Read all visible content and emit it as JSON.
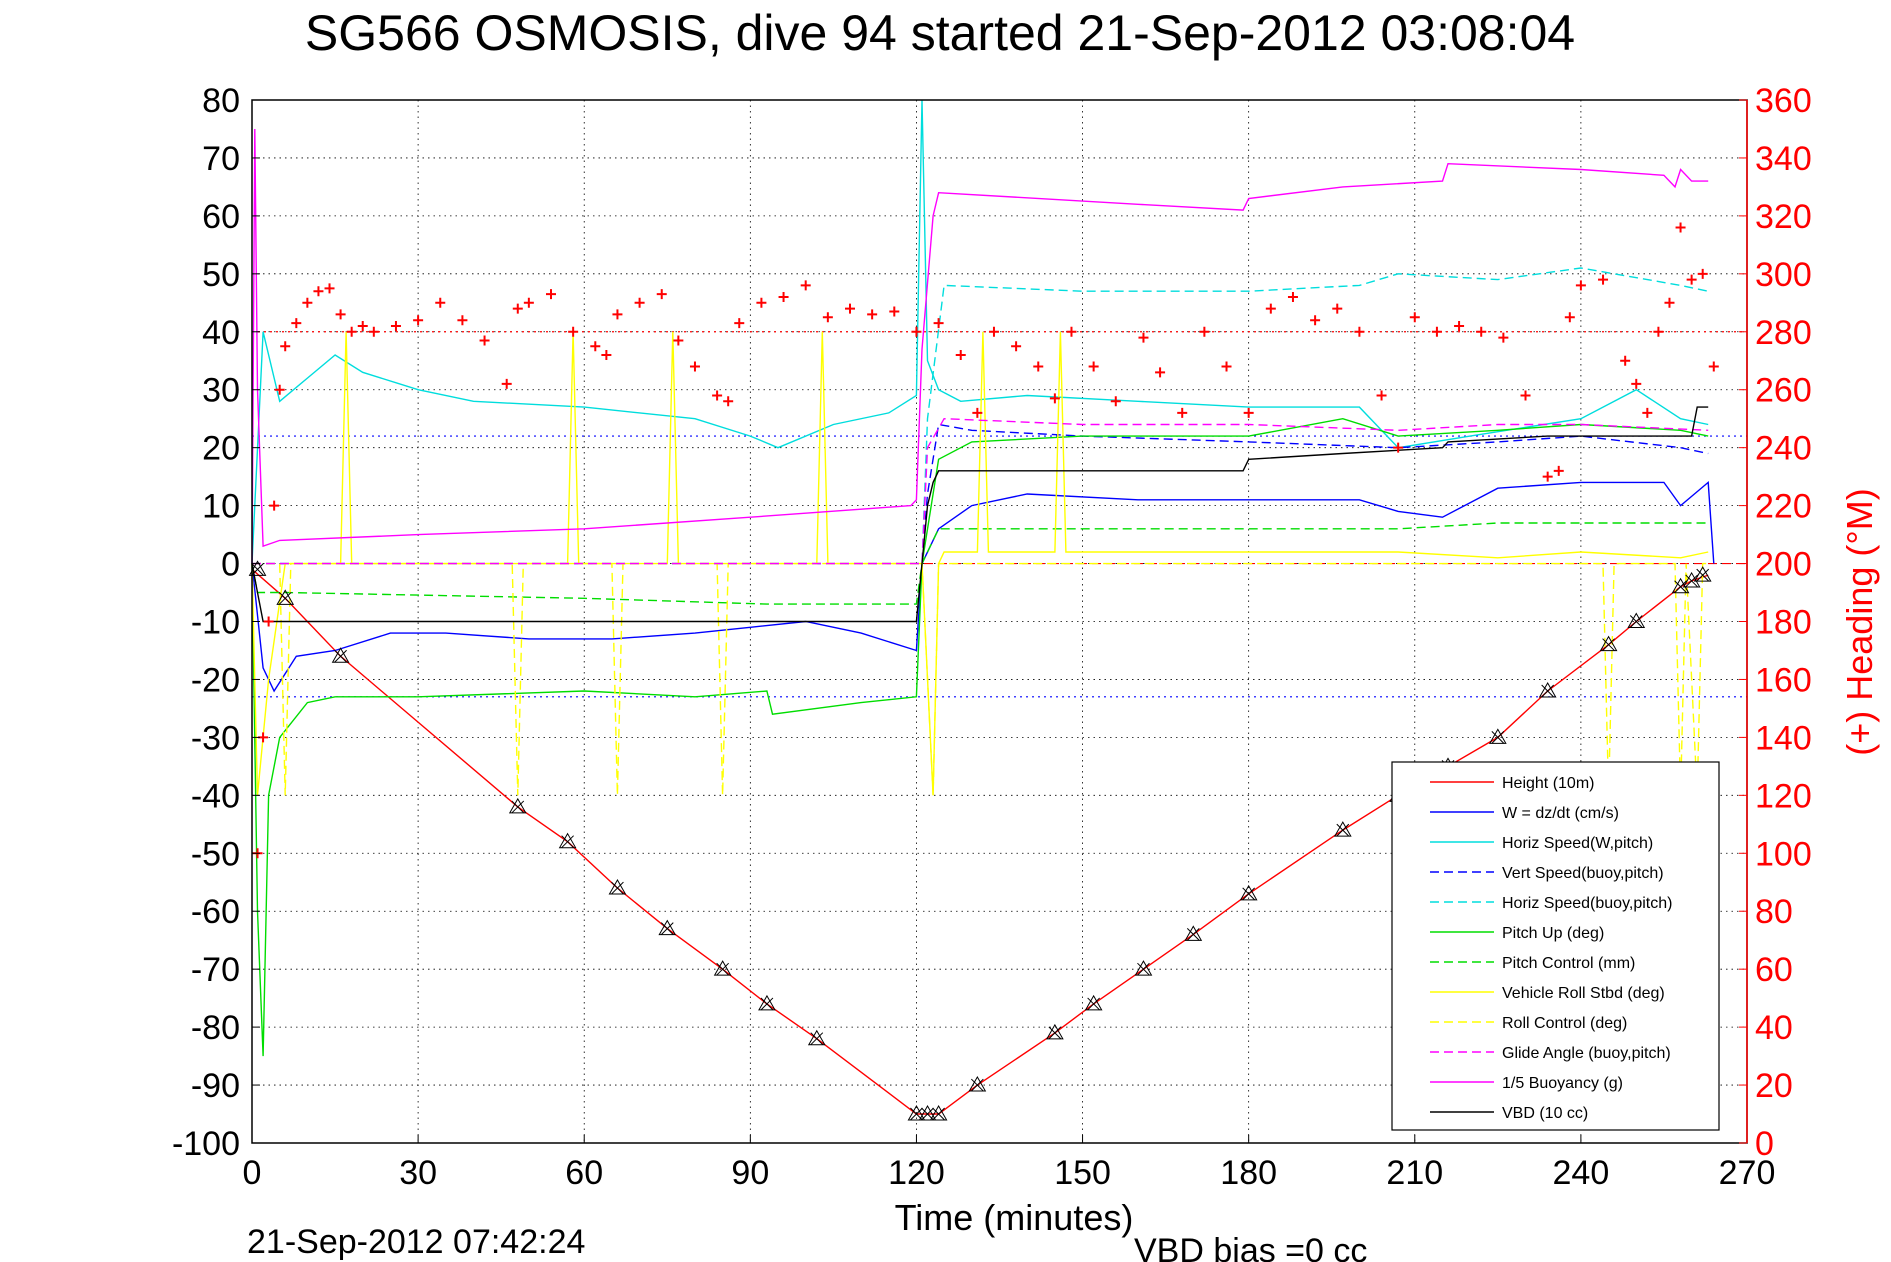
{
  "chart_data": {
    "type": "line",
    "title": "SG566 OSMOSIS, dive 94 started 21-Sep-2012 03:08:04",
    "xlabel": "Time (minutes)",
    "ylabel": "",
    "y2label": "(+) Heading (°M)",
    "xlim": [
      0,
      270
    ],
    "ylim": [
      -100,
      80
    ],
    "y2lim": [
      0,
      360
    ],
    "xticks": [
      0,
      30,
      60,
      90,
      120,
      150,
      180,
      210,
      240,
      270
    ],
    "yticks": [
      80,
      70,
      60,
      50,
      40,
      30,
      20,
      10,
      0,
      -10,
      -20,
      -30,
      -40,
      -50,
      -60,
      -70,
      -80,
      -90,
      -100
    ],
    "y2ticks": [
      360,
      340,
      320,
      300,
      280,
      260,
      240,
      220,
      200,
      180,
      160,
      140,
      120,
      100,
      80,
      60,
      40,
      20,
      0
    ],
    "grid": true,
    "legend_position": "bottom-right",
    "footer_left": "21-Sep-2012 07:42:24",
    "footer_right": "VBD bias =0 cc",
    "series": [
      {
        "name": "Height (10m)",
        "color": "#ff0000",
        "dash": "solid",
        "x": [
          0,
          6,
          16,
          48,
          57,
          66,
          75,
          85,
          93,
          102,
          120,
          122,
          124,
          131,
          145,
          152,
          161,
          170,
          180,
          197,
          207,
          216,
          225,
          234,
          245,
          250,
          258,
          260,
          263
        ],
        "values": [
          -1,
          -6,
          -16,
          -42,
          -48,
          -56,
          -63,
          -70,
          -76,
          -82,
          -95,
          -95,
          -95,
          -90,
          -81,
          -76,
          -70,
          -64,
          -57,
          -46,
          -40,
          -35,
          -30,
          -22,
          -14,
          -10,
          -4,
          -3,
          -2
        ]
      },
      {
        "name": "W = dz/dt (cm/s)",
        "color": "#0000ff",
        "dash": "solid",
        "x": [
          0,
          2,
          4,
          8,
          15,
          25,
          35,
          50,
          65,
          80,
          90,
          100,
          110,
          120,
          121,
          124,
          130,
          140,
          160,
          180,
          200,
          207,
          215,
          225,
          240,
          255,
          258,
          263,
          264
        ],
        "values": [
          0,
          -18,
          -22,
          -16,
          -15,
          -12,
          -12,
          -13,
          -13,
          -12,
          -11,
          -10,
          -12,
          -15,
          0,
          6,
          10,
          12,
          11,
          11,
          11,
          9,
          8,
          13,
          14,
          14,
          10,
          14,
          0
        ]
      },
      {
        "name": "Horiz Speed(W,pitch)",
        "color": "#00dddd",
        "dash": "solid",
        "x": [
          0,
          2,
          5,
          10,
          15,
          20,
          30,
          40,
          60,
          80,
          90,
          95,
          105,
          115,
          120,
          121,
          122,
          124,
          128,
          140,
          160,
          180,
          200,
          207,
          220,
          240,
          250,
          258,
          263
        ],
        "values": [
          0,
          40,
          28,
          32,
          36,
          33,
          30,
          28,
          27,
          25,
          22,
          20,
          24,
          26,
          29,
          80,
          35,
          30,
          28,
          29,
          28,
          27,
          27,
          20,
          22,
          25,
          30,
          25,
          24
        ]
      },
      {
        "name": "Vert Speed(buoy,pitch)",
        "color": "#0000ff",
        "dash": "dashed",
        "x": [
          0,
          121,
          122,
          124,
          130,
          150,
          180,
          207,
          225,
          240,
          258,
          263
        ],
        "values": [
          0,
          0,
          12,
          24,
          23,
          22,
          21,
          20,
          21,
          22,
          20,
          19
        ]
      },
      {
        "name": "Horiz Speed(buoy,pitch)",
        "color": "#00dddd",
        "dash": "dashed",
        "x": [
          0,
          121,
          122,
          125,
          150,
          180,
          200,
          207,
          225,
          240,
          258,
          263
        ],
        "values": [
          0,
          0,
          25,
          48,
          47,
          47,
          48,
          50,
          49,
          51,
          48,
          47
        ]
      },
      {
        "name": "Pitch Up (deg)",
        "color": "#00dd00",
        "dash": "solid",
        "x": [
          0,
          1,
          2,
          3,
          5,
          10,
          15,
          30,
          60,
          80,
          93,
          94,
          110,
          120,
          121,
          124,
          130,
          150,
          180,
          197,
          207,
          225,
          240,
          258,
          263
        ],
        "values": [
          0,
          -60,
          -85,
          -40,
          -30,
          -24,
          -23,
          -23,
          -22,
          -23,
          -22,
          -26,
          -24,
          -23,
          0,
          18,
          21,
          22,
          22,
          25,
          22,
          23,
          24,
          23,
          22
        ]
      },
      {
        "name": "Pitch Control (mm)",
        "color": "#00dd00",
        "dash": "dashed",
        "x": [
          0,
          1,
          6,
          60,
          93,
          120,
          121,
          124,
          150,
          180,
          207,
          225,
          240,
          263
        ],
        "values": [
          0,
          -5,
          -5,
          -6,
          -7,
          -7,
          0,
          6,
          6,
          6,
          6,
          7,
          7,
          7
        ]
      },
      {
        "name": "Vehicle Roll Stbd (deg)",
        "color": "#ffff00",
        "dash": "solid",
        "x": [
          0,
          1,
          3,
          6,
          16,
          17,
          18,
          57,
          58,
          59,
          75,
          76,
          77,
          102,
          103,
          104,
          120,
          121,
          123,
          124,
          125,
          131,
          132,
          133,
          145,
          146,
          147,
          161,
          170,
          180,
          200,
          207,
          225,
          240,
          258,
          263
        ],
        "values": [
          0,
          -40,
          -20,
          0,
          0,
          40,
          0,
          0,
          40,
          0,
          0,
          40,
          0,
          0,
          40,
          0,
          0,
          0,
          -40,
          0,
          2,
          2,
          40,
          2,
          2,
          40,
          2,
          2,
          2,
          2,
          2,
          2,
          1,
          2,
          1,
          2
        ]
      },
      {
        "name": "Roll Control (deg)",
        "color": "#ffff00",
        "dash": "dashed",
        "x": [
          0,
          5,
          6,
          7,
          47,
          48,
          49,
          65,
          66,
          67,
          84,
          85,
          86,
          120,
          121,
          123,
          124,
          244,
          245,
          246,
          257,
          258,
          259,
          261,
          262,
          263
        ],
        "values": [
          0,
          0,
          -40,
          0,
          0,
          -40,
          0,
          0,
          -40,
          0,
          0,
          -40,
          0,
          0,
          0,
          -40,
          0,
          0,
          -40,
          0,
          0,
          -40,
          0,
          -40,
          0,
          0
        ]
      },
      {
        "name": "Glide Angle (buoy,pitch)",
        "color": "#ff00ff",
        "dash": "dashed",
        "x": [
          0,
          3,
          121,
          122,
          125,
          150,
          180,
          207,
          225,
          240,
          263
        ],
        "values": [
          0,
          0,
          0,
          20,
          25,
          24,
          24,
          23,
          24,
          24,
          23
        ]
      },
      {
        "name": "1/5 Buoyancy (g)",
        "color": "#ff00ff",
        "dash": "solid",
        "x": [
          0,
          0.5,
          1,
          2,
          5,
          30,
          60,
          90,
          119,
          120,
          121,
          123,
          124,
          160,
          179,
          180,
          197,
          215,
          216,
          240,
          255,
          257,
          258,
          260,
          263
        ],
        "values": [
          0,
          75,
          30,
          3,
          4,
          5,
          6,
          8,
          10,
          11,
          37,
          60,
          64,
          62,
          61,
          63,
          65,
          66,
          69,
          68,
          67,
          65,
          68,
          66,
          66
        ]
      },
      {
        "name": "VBD (10 cc)",
        "color": "#000000",
        "dash": "solid",
        "x": [
          0,
          1,
          2,
          120,
          121,
          122,
          123,
          124,
          179,
          180,
          197,
          215,
          216,
          234,
          260,
          261,
          263
        ],
        "values": [
          0,
          -5,
          -10,
          -10,
          0,
          10,
          14,
          16,
          16,
          18,
          19,
          20,
          21,
          22,
          22,
          27,
          27
        ]
      }
    ],
    "heading_points": {
      "name": "(+) Heading",
      "color": "#ff0000",
      "marker": "+",
      "x": [
        1,
        2,
        3,
        4,
        5,
        6,
        8,
        10,
        12,
        14,
        16,
        18,
        20,
        22,
        26,
        30,
        34,
        38,
        42,
        46,
        48,
        50,
        54,
        58,
        62,
        64,
        66,
        70,
        74,
        77,
        80,
        84,
        86,
        88,
        92,
        96,
        100,
        104,
        108,
        112,
        116,
        120,
        124,
        128,
        131,
        134,
        138,
        142,
        145,
        148,
        152,
        156,
        161,
        164,
        168,
        172,
        176,
        180,
        184,
        188,
        192,
        196,
        200,
        204,
        207,
        210,
        214,
        218,
        222,
        226,
        230,
        234,
        236,
        238,
        240,
        244,
        248,
        250,
        252,
        254,
        256,
        258,
        260,
        262,
        264
      ],
      "values": [
        100,
        140,
        180,
        220,
        260,
        275,
        283,
        290,
        294,
        295,
        286,
        280,
        282,
        280,
        282,
        284,
        290,
        284,
        277,
        262,
        288,
        290,
        293,
        280,
        275,
        272,
        286,
        290,
        293,
        277,
        268,
        258,
        256,
        283,
        290,
        292,
        296,
        285,
        288,
        286,
        287,
        280,
        283,
        272,
        252,
        280,
        275,
        268,
        257,
        280,
        268,
        256,
        278,
        266,
        252,
        280,
        268,
        252,
        288,
        292,
        284,
        288,
        280,
        258,
        240,
        285,
        280,
        282,
        280,
        278,
        258,
        230,
        232,
        285,
        296,
        298,
        270,
        262,
        252,
        280,
        290,
        316,
        298,
        300,
        268
      ]
    },
    "glide_markers": [
      {
        "x": 1,
        "y": -1
      },
      {
        "x": 6,
        "y": -6
      },
      {
        "x": 16,
        "y": -16
      },
      {
        "x": 48,
        "y": -42
      },
      {
        "x": 57,
        "y": -48
      },
      {
        "x": 66,
        "y": -56
      },
      {
        "x": 75,
        "y": -63
      },
      {
        "x": 85,
        "y": -70
      },
      {
        "x": 93,
        "y": -76
      },
      {
        "x": 102,
        "y": -82
      },
      {
        "x": 120,
        "y": -95
      },
      {
        "x": 122,
        "y": -95
      },
      {
        "x": 124,
        "y": -95
      },
      {
        "x": 131,
        "y": -90
      },
      {
        "x": 145,
        "y": -81
      },
      {
        "x": 152,
        "y": -76
      },
      {
        "x": 161,
        "y": -70
      },
      {
        "x": 170,
        "y": -64
      },
      {
        "x": 180,
        "y": -57
      },
      {
        "x": 197,
        "y": -46
      },
      {
        "x": 207,
        "y": -40
      },
      {
        "x": 216,
        "y": -35
      },
      {
        "x": 225,
        "y": -30
      },
      {
        "x": 234,
        "y": -22
      },
      {
        "x": 245,
        "y": -14
      },
      {
        "x": 250,
        "y": -10
      },
      {
        "x": 258,
        "y": -4
      },
      {
        "x": 260,
        "y": -3
      },
      {
        "x": 262,
        "y": -2
      }
    ],
    "reference_lines": [
      {
        "axis": "y2",
        "value": 280,
        "color": "#ff0000",
        "dash": "dotted"
      },
      {
        "axis": "y",
        "value": 0,
        "color": "#ff0000",
        "dash": "dashed"
      },
      {
        "axis": "y",
        "value": 22,
        "color": "#0000ff",
        "dash": "dotted"
      },
      {
        "axis": "y",
        "value": -23,
        "color": "#0000ff",
        "dash": "dotted"
      }
    ]
  }
}
